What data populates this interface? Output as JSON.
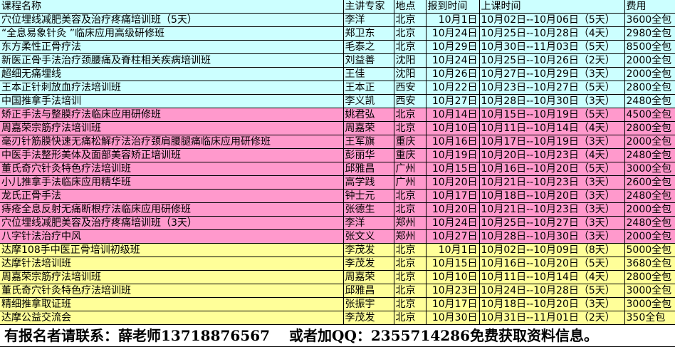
{
  "colors": {
    "group1": "#ccffff",
    "group2": "#ff99cc",
    "group3": "#ffff99"
  },
  "header": [
    "课程名称",
    "主讲专家",
    "地点",
    "报到时间",
    "上课时间",
    "费用"
  ],
  "rows": [
    {
      "g": "blue",
      "c": [
        "穴位埋线减肥美容及治疗疼痛培训班（5天）",
        "李洋",
        "北京",
        "10月1日",
        "10月02日--10月06日（5天）",
        "3600全包"
      ]
    },
    {
      "g": "blue",
      "c": [
        "“全息易象针灸 ”临床应用高级研修班",
        "郑卫东",
        "北京",
        "10月24日",
        "10月25日--10月28日（4天）",
        "2980全包"
      ]
    },
    {
      "g": "blue",
      "c": [
        "东方柔性正骨疗法",
        "毛泰之",
        "北京",
        "10月29日",
        "10月30日--11月03日（5天）",
        "8500全包"
      ]
    },
    {
      "g": "blue",
      "c": [
        "新医正骨手法治疗颈腰痛及脊柱相关疾病培训班",
        "刘益善",
        "沈阳",
        "10月24日",
        "10月25日--10月26日（2天）",
        "2000全包"
      ]
    },
    {
      "g": "blue",
      "c": [
        "超细无痛埋线",
        "王佳",
        "沈阳",
        "10月26日",
        "10月27日--10月29日（3天）",
        "2000全包"
      ]
    },
    {
      "g": "blue",
      "c": [
        "王本正针刺放血疗法培训班",
        "王本正",
        "西安",
        "10月22日",
        "10月23日--10月27日（5天）",
        "2800全包"
      ]
    },
    {
      "g": "blue",
      "c": [
        "中国推拿手法培训",
        "李义凯",
        "西安",
        "10月27日",
        "10月28日--10月30日（3天）",
        "2480全包"
      ]
    },
    {
      "g": "pink",
      "c": [
        "矫正手法与整膜疗法临床应用研修班",
        "姚君弘",
        "北京",
        "10月14日",
        "10月15日--10月19日（5天）",
        "4500全包"
      ]
    },
    {
      "g": "pink",
      "c": [
        "周嘉荣宗筋疗法培训班",
        "周嘉荣",
        "北京",
        "10月10日",
        "10月11日--10月14日（4天）",
        "2800全包"
      ]
    },
    {
      "g": "pink",
      "c": [
        "毫刃针筋膜快速无痛松解疗法治疗颈肩腰腿痛临床应用研修班",
        "王军旗",
        "重庆",
        "10月16日",
        "10月17日--10月19日（3天）",
        "2000全包"
      ]
    },
    {
      "g": "pink",
      "c": [
        "中医手法整形美体及面部美容矫正培训班",
        "彭丽华",
        "重庆",
        "10月19日",
        "10月20日--10月23日（4天）",
        "2480全包"
      ]
    },
    {
      "g": "pink",
      "c": [
        "董氏奇穴针灸特色疗法培训班",
        "邱雅昌",
        "广州",
        "10月15日",
        "10月16日--10月20日（5天）",
        "3000全包"
      ]
    },
    {
      "g": "pink",
      "c": [
        "小儿推拿手法临床应用精华班",
        "高学践",
        "广州",
        "10月20日",
        "10月21日--10月23日（3天）",
        "2600全包"
      ]
    },
    {
      "g": "pink",
      "c": [
        "龙氏正骨手法",
        "钟士元",
        "北京",
        "10月17日",
        "10月18日--10月20日（3天）",
        "2480全包"
      ]
    },
    {
      "g": "pink",
      "c": [
        "痔疮全息反射无痛断根疗法临床应用研修班",
        "张德生",
        "北京",
        "10月20日",
        "10月21日--10月23日（3天）",
        "2000全包"
      ]
    },
    {
      "g": "pink",
      "c": [
        "穴位埋线减肥美容及治疗疼痛培训班（3天）",
        "李洋",
        "郑州",
        "10月24日",
        "10月25日--10月27日（3天）",
        "2480全包"
      ]
    },
    {
      "g": "pink",
      "c": [
        "八字针法治疗中风",
        "张文义",
        "郑州",
        "10月27日",
        "10月28日--10月30日（3天）",
        "2000全包"
      ]
    },
    {
      "g": "yellow",
      "c": [
        "达摩108手中医正骨培训初级班",
        "李茂发",
        "北京",
        "10月1日",
        "10月02日--10月09日（8天）",
        "5000全包"
      ]
    },
    {
      "g": "yellow",
      "c": [
        "达摩针法培训班",
        "李茂发",
        "北京",
        "10月15日",
        "10月16日--10月20日（5天）",
        "3680全包"
      ]
    },
    {
      "g": "yellow",
      "c": [
        "周嘉荣宗筋疗法培训班",
        "周嘉荣",
        "北京",
        "10月10日",
        "10月11日--10月14日（4天）",
        "2800全包"
      ]
    },
    {
      "g": "yellow",
      "c": [
        "董氏奇穴针灸特色疗法培训班",
        "邱雅昌",
        "北京",
        "10月23日",
        "10月24日--10月28日（5天）",
        "3000全包"
      ]
    },
    {
      "g": "yellow",
      "c": [
        "精细推拿取证班",
        "张振宇",
        "北京",
        "10月17日",
        "10月18日--10月20日（3天）",
        "3000全包"
      ]
    },
    {
      "g": "yellow",
      "c": [
        "达摩公益交流会",
        "李茂发",
        "北京",
        "10月30日",
        "10月31日--11月01日（2天）",
        "350全包"
      ]
    }
  ],
  "footer": "有报名者请联系：薛老师13718876567　 或者加QQ：2355714286免费获取资料信息。"
}
